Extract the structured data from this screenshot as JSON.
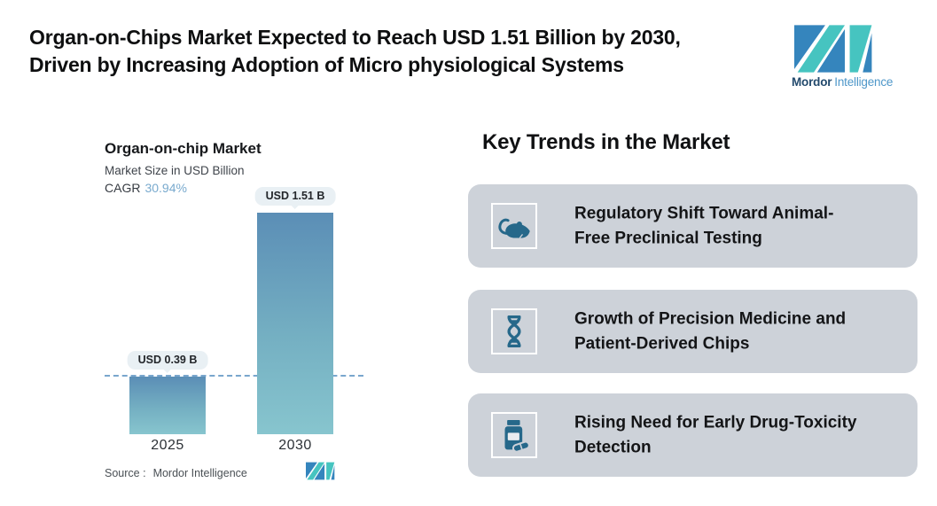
{
  "header": {
    "title_line1": "Organ-on-Chips Market Expected to Reach USD 1.51 Billion by 2030,",
    "title_line2": "Driven by Increasing Adoption of Micro physiological Systems",
    "brand": {
      "bold": "Mordor",
      "light": "Intelligence"
    }
  },
  "chart": {
    "title": "Organ-on-chip Market",
    "subtitle": "Market Size in USD Billion",
    "cagr_label": "CAGR",
    "cagr_value": "30.94%",
    "source_label": "Source :",
    "source_value": "Mordor Intelligence"
  },
  "chart_data": {
    "type": "bar",
    "categories": [
      "2025",
      "2030"
    ],
    "values": [
      0.39,
      1.51
    ],
    "data_labels": [
      "USD 0.39 B",
      "USD 1.51 B"
    ],
    "title": "Organ-on-chip Market",
    "xlabel": "",
    "ylabel": "Market Size in USD Billion",
    "cagr": "30.94%",
    "ylim": [
      0,
      1.6
    ],
    "grid": false,
    "legend": "none",
    "annotations": [
      "dashed horizontal reference line at the 2025 level (USD 0.39 B)"
    ],
    "source": "Mordor Intelligence"
  },
  "trends": {
    "heading": "Key Trends in the Market",
    "cards": [
      {
        "icon": "rat-icon",
        "line1": "Regulatory Shift Toward Animal-",
        "line2": "Free Preclinical Testing"
      },
      {
        "icon": "dna-icon",
        "line1": "Growth of Precision Medicine and",
        "line2": "Patient-Derived Chips"
      },
      {
        "icon": "pill-bottle-icon",
        "line1": "Rising Need for Early Drug-Toxicity",
        "line2": "Detection"
      }
    ]
  },
  "colors": {
    "bar_gradient_top": "#5b8eb6",
    "bar_gradient_bottom": "#87c5ce",
    "dashed_line": "#79a6cd",
    "tooltip_bg": "#e9f0f4",
    "card_bg": "#cdd2d9",
    "icon_blue": "#26688a",
    "logo_teal": "#46c4c0",
    "logo_blue": "#3585bd",
    "cagr_value": "#79aace",
    "title_text": "#0e0f10"
  }
}
